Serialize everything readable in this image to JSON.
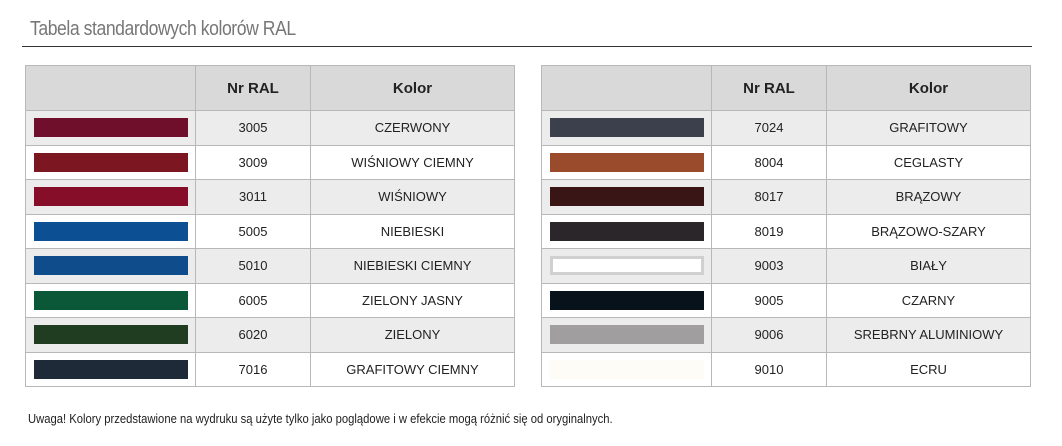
{
  "title": "Tabela standardowych kolorów RAL",
  "headers": {
    "swatch": "",
    "nr": "Nr RAL",
    "kolor": "Kolor"
  },
  "left": [
    {
      "nr": "3005",
      "name": "CZERWONY",
      "color": "#6f0f2b"
    },
    {
      "nr": "3009",
      "name": "WIŚNIOWY CIEMNY",
      "color": "#7c1620"
    },
    {
      "nr": "3011",
      "name": "WIŚNIOWY",
      "color": "#860e28"
    },
    {
      "nr": "5005",
      "name": "NIEBIESKI",
      "color": "#0d4f93"
    },
    {
      "nr": "5010",
      "name": "NIEBIESKI CIEMNY",
      "color": "#0e4c8c"
    },
    {
      "nr": "6005",
      "name": "ZIELONY JASNY",
      "color": "#0b5838"
    },
    {
      "nr": "6020",
      "name": "ZIELONY",
      "color": "#213d21"
    },
    {
      "nr": "7016",
      "name": "GRAFITOWY CIEMNY",
      "color": "#1e2a38"
    }
  ],
  "right": [
    {
      "nr": "7024",
      "name": "GRAFITOWY",
      "color": "#3c3f4c"
    },
    {
      "nr": "8004",
      "name": "CEGLASTY",
      "color": "#994b2c"
    },
    {
      "nr": "8017",
      "name": "BRĄZOWY",
      "color": "#3a1515"
    },
    {
      "nr": "8019",
      "name": "BRĄZOWO-SZARY",
      "color": "#2b2629"
    },
    {
      "nr": "9003",
      "name": "BIAŁY",
      "color": "#ffffff"
    },
    {
      "nr": "9005",
      "name": "CZARNY",
      "color": "#08121a"
    },
    {
      "nr": "9006",
      "name": "SREBRNY ALUMINIOWY",
      "color": "#a09e9f"
    },
    {
      "nr": "9010",
      "name": "ECRU",
      "color": "#fdfcf6"
    }
  ],
  "note": "Uwaga! Kolory przedstawione na wydruku są użyte tylko jako poglądowe i w efekcie mogą różnić się od oryginalnych."
}
